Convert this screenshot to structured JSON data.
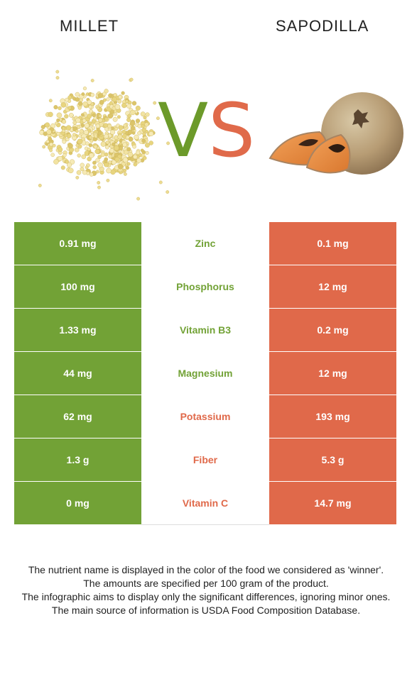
{
  "header": {
    "left_food": "MILLET",
    "right_food": "SAPODILLA"
  },
  "vs": {
    "v": "V",
    "s": "S"
  },
  "colors": {
    "left": "#72a236",
    "right": "#e0694a"
  },
  "rows": [
    {
      "nutrient": "Zinc",
      "left": "0.91 mg",
      "right": "0.1 mg",
      "winner": "left"
    },
    {
      "nutrient": "Phosphorus",
      "left": "100 mg",
      "right": "12 mg",
      "winner": "left"
    },
    {
      "nutrient": "Vitamin B3",
      "left": "1.33 mg",
      "right": "0.2 mg",
      "winner": "left"
    },
    {
      "nutrient": "Magnesium",
      "left": "44 mg",
      "right": "12 mg",
      "winner": "left"
    },
    {
      "nutrient": "Potassium",
      "left": "62 mg",
      "right": "193 mg",
      "winner": "right"
    },
    {
      "nutrient": "Fiber",
      "left": "1.3 g",
      "right": "5.3 g",
      "winner": "right"
    },
    {
      "nutrient": "Vitamin C",
      "left": "0 mg",
      "right": "14.7 mg",
      "winner": "right"
    }
  ],
  "footer": {
    "line1": "The nutrient name is displayed in the color of the food we considered as 'winner'.",
    "line2": "The amounts are specified per 100 gram of the product.",
    "line3": "The infographic aims to display only the significant differences, ignoring minor ones.",
    "line4": "The main source of information is USDA Food Composition Database."
  }
}
